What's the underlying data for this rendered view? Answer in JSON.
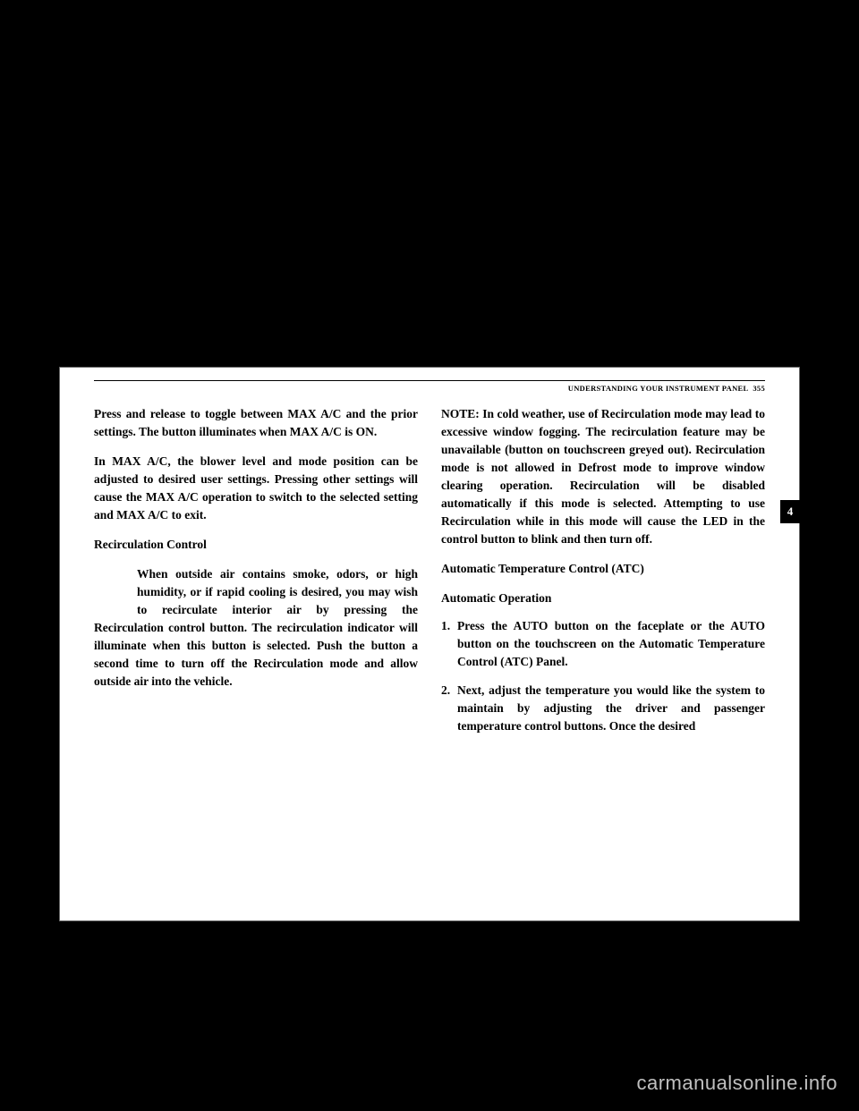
{
  "header": {
    "section": "UNDERSTANDING YOUR INSTRUMENT PANEL",
    "page": "355"
  },
  "sideTab": "4",
  "leftColumn": {
    "para1": "Press and release to toggle between MAX A/C and the prior settings. The button illuminates when MAX A/C is ON.",
    "para2": "In MAX A/C, the blower level and mode position can be adjusted to desired user settings. Pressing other settings will cause the MAX A/C operation to switch to the selected setting and MAX A/C to exit.",
    "heading1": "Recirculation Control",
    "para3": "When outside air contains smoke, odors, or high humidity, or if rapid cooling is desired, you may wish to recirculate interior air by pressing the Recirculation control button. The recirculation indicator will illuminate when this button is selected. Push the button a second time to turn off the Recirculation mode and allow outside air into the vehicle."
  },
  "rightColumn": {
    "noteLabel": "NOTE:",
    "notePara": "In cold weather, use of Recirculation mode may lead to excessive window fogging. The recirculation feature may be unavailable (button on touchscreen greyed out). Recirculation mode is not allowed in Defrost mode to improve window clearing operation. Recirculation will be disabled automatically if this mode is selected. Attempting to use Recirculation while in this mode will cause the LED in the control button to blink and then turn off.",
    "heading2": "Automatic Temperature Control (ATC)",
    "heading3": "Automatic Operation",
    "step1": "Press the AUTO button on the faceplate or the AUTO button on the touchscreen on the Automatic Temperature Control (ATC) Panel.",
    "step2": "Next, adjust the temperature you would like the system to maintain by adjusting the driver and passenger temperature control buttons. Once the desired"
  },
  "watermark": "carmanualsonline.info"
}
